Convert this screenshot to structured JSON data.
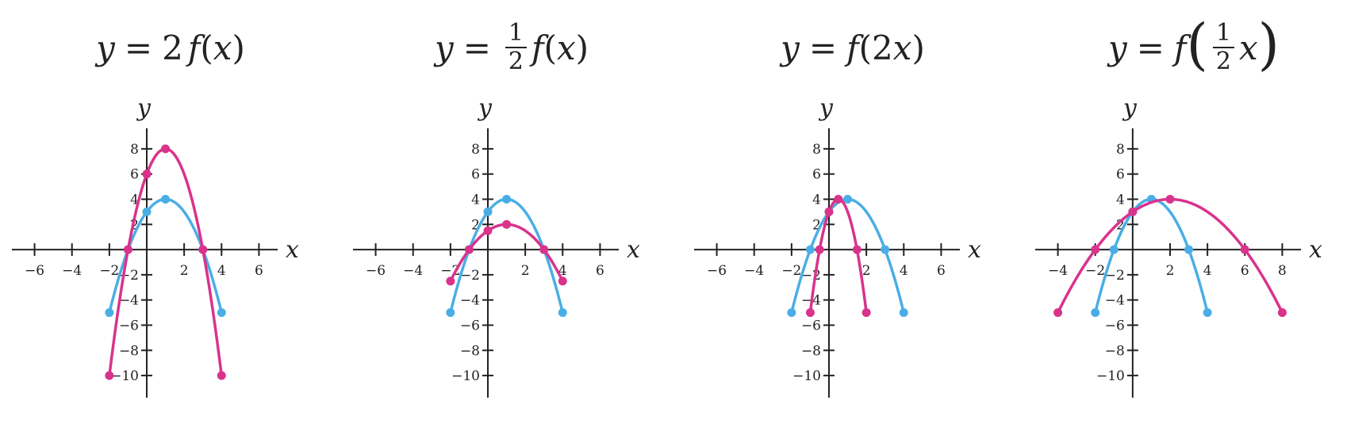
{
  "chart_data": [
    {
      "type": "line",
      "title": "y = 2f(x)",
      "xlabel": "x",
      "ylabel": "y",
      "xlim": [
        -7,
        7
      ],
      "ylim": [
        -11,
        9
      ],
      "xticks": [
        -6,
        -4,
        -2,
        2,
        4,
        6
      ],
      "yticks": [
        8,
        6,
        4,
        2,
        -2,
        -4,
        -6,
        -8,
        -10
      ],
      "xtick_labels": [
        "−6",
        "−4",
        "−2",
        "2",
        "4",
        "6"
      ],
      "ytick_labels": [
        "8",
        "6",
        "4",
        "2",
        "−2",
        "−4",
        "−6",
        "−8",
        "−10"
      ],
      "series": [
        {
          "color": "#4aaee6",
          "x": [
            -2,
            -1,
            0,
            1,
            2,
            3,
            4
          ],
          "y": [
            -5,
            0,
            3,
            4,
            3,
            0,
            -5
          ],
          "points": [
            [
              -2,
              -5
            ],
            [
              -1,
              0
            ],
            [
              0,
              3
            ],
            [
              1,
              4
            ],
            [
              3,
              0
            ],
            [
              4,
              -5
            ]
          ]
        },
        {
          "color": "#d9338c",
          "x": [
            -2,
            -1,
            0,
            1,
            2,
            3,
            4
          ],
          "y": [
            -10,
            0,
            6,
            8,
            6,
            0,
            -10
          ],
          "points": [
            [
              -2,
              -10
            ],
            [
              -1,
              0
            ],
            [
              0,
              6
            ],
            [
              1,
              8
            ],
            [
              3,
              0
            ],
            [
              4,
              -10
            ]
          ]
        }
      ]
    },
    {
      "type": "line",
      "title": "y = 1/2 f(x)",
      "xlabel": "x",
      "ylabel": "y",
      "xlim": [
        -7,
        7
      ],
      "ylim": [
        -11,
        9
      ],
      "xticks": [
        -6,
        -4,
        -2,
        2,
        4,
        6
      ],
      "yticks": [
        8,
        6,
        4,
        2,
        -2,
        -4,
        -6,
        -8,
        -10
      ],
      "xtick_labels": [
        "−6",
        "−4",
        "−2",
        "2",
        "4",
        "6"
      ],
      "ytick_labels": [
        "8",
        "6",
        "4",
        "2",
        "−2",
        "−4",
        "−6",
        "−8",
        "−10"
      ],
      "series": [
        {
          "color": "#4aaee6",
          "x": [
            -2,
            -1,
            0,
            1,
            2,
            3,
            4
          ],
          "y": [
            -5,
            0,
            3,
            4,
            3,
            0,
            -5
          ],
          "points": [
            [
              -2,
              -5
            ],
            [
              -1,
              0
            ],
            [
              0,
              3
            ],
            [
              1,
              4
            ],
            [
              3,
              0
            ],
            [
              4,
              -5
            ]
          ]
        },
        {
          "color": "#d9338c",
          "x": [
            -2,
            -1,
            0,
            1,
            2,
            3,
            4
          ],
          "y": [
            -2.5,
            0,
            1.5,
            2,
            1.5,
            0,
            -2.5
          ],
          "points": [
            [
              -2,
              -2.5
            ],
            [
              -1,
              0
            ],
            [
              0,
              1.5
            ],
            [
              1,
              2
            ],
            [
              3,
              0
            ],
            [
              4,
              -2.5
            ]
          ]
        }
      ]
    },
    {
      "type": "line",
      "title": "y = f(2x)",
      "xlabel": "x",
      "ylabel": "y",
      "xlim": [
        -7,
        7
      ],
      "ylim": [
        -11,
        9
      ],
      "xticks": [
        -6,
        -4,
        -2,
        2,
        4,
        6
      ],
      "yticks": [
        8,
        6,
        4,
        2,
        -2,
        -4,
        -6,
        -8,
        -10
      ],
      "xtick_labels": [
        "−6",
        "−4",
        "−2",
        "2",
        "4",
        "6"
      ],
      "ytick_labels": [
        "8",
        "6",
        "4",
        "2",
        "−2",
        "−4",
        "−6",
        "−8",
        "−10"
      ],
      "series": [
        {
          "color": "#4aaee6",
          "x": [
            -2,
            -1,
            0,
            1,
            2,
            3,
            4
          ],
          "y": [
            -5,
            0,
            3,
            4,
            3,
            0,
            -5
          ],
          "points": [
            [
              -2,
              -5
            ],
            [
              -1,
              0
            ],
            [
              0,
              3
            ],
            [
              1,
              4
            ],
            [
              3,
              0
            ],
            [
              4,
              -5
            ]
          ]
        },
        {
          "color": "#d9338c",
          "x": [
            -1,
            -0.5,
            0,
            0.5,
            1,
            1.5,
            2
          ],
          "y": [
            -5,
            0,
            3,
            4,
            3,
            0,
            -5
          ],
          "points": [
            [
              -1,
              -5
            ],
            [
              -0.5,
              0
            ],
            [
              0,
              3
            ],
            [
              0.5,
              4
            ],
            [
              1.5,
              0
            ],
            [
              2,
              -5
            ]
          ]
        }
      ]
    },
    {
      "type": "line",
      "title": "y = f(1/2 x)",
      "xlabel": "x",
      "ylabel": "y",
      "xlim": [
        -5,
        9
      ],
      "ylim": [
        -11,
        9
      ],
      "xticks": [
        -4,
        -2,
        2,
        4,
        6,
        8
      ],
      "yticks": [
        8,
        6,
        4,
        2,
        -2,
        -4,
        -6,
        -8,
        -10
      ],
      "xtick_labels": [
        "−4",
        "−2",
        "2",
        "4",
        "6",
        "8"
      ],
      "ytick_labels": [
        "8",
        "6",
        "4",
        "2",
        "−2",
        "−4",
        "−6",
        "−8",
        "−10"
      ],
      "series": [
        {
          "color": "#4aaee6",
          "x": [
            -2,
            -1,
            0,
            1,
            2,
            3,
            4
          ],
          "y": [
            -5,
            0,
            3,
            4,
            3,
            0,
            -5
          ],
          "points": [
            [
              -2,
              -5
            ],
            [
              -1,
              0
            ],
            [
              0,
              3
            ],
            [
              1,
              4
            ],
            [
              3,
              0
            ],
            [
              4,
              -5
            ]
          ]
        },
        {
          "color": "#d9338c",
          "x": [
            -4,
            -2,
            0,
            2,
            4,
            6,
            8
          ],
          "y": [
            -5,
            0,
            3,
            4,
            3,
            0,
            -5
          ],
          "points": [
            [
              -4,
              -5
            ],
            [
              -2,
              0
            ],
            [
              0,
              3
            ],
            [
              2,
              4
            ],
            [
              6,
              0
            ],
            [
              8,
              -5
            ]
          ]
        }
      ]
    }
  ],
  "titles": [
    {
      "y": "y",
      "eq": "=",
      "coef": "2",
      "f": "f",
      "open": "(",
      "arg": "x",
      "close": ")"
    },
    {
      "y": "y",
      "eq": "=",
      "num": "1",
      "den": "2",
      "f": "f",
      "open": "(",
      "arg": "x",
      "close": ")"
    },
    {
      "y": "y",
      "eq": "=",
      "f": "f",
      "open": "(",
      "coef": "2",
      "arg": "x",
      "close": ")"
    },
    {
      "y": "y",
      "eq": "=",
      "f": "f",
      "open": "(",
      "num": "1",
      "den": "2",
      "arg": "x",
      "close": ")"
    }
  ]
}
